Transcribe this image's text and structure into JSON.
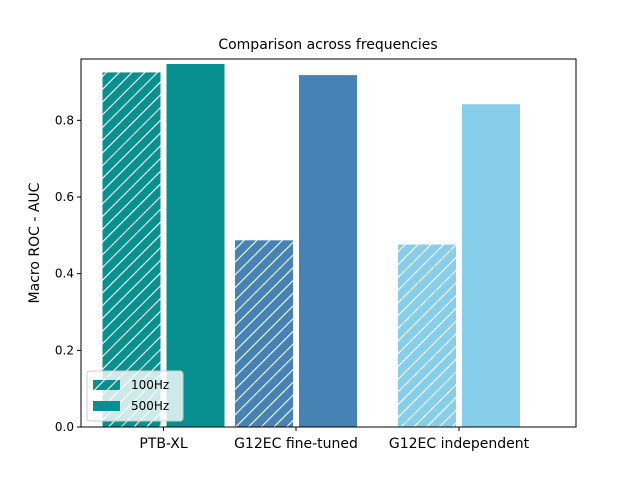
{
  "chart_data": {
    "type": "bar",
    "title": "Comparison across frequencies",
    "xlabel": "",
    "ylabel": "Macro ROC - AUC",
    "categories": [
      "PTB-XL",
      "G12EC fine-tuned",
      "G12EC independent"
    ],
    "series": [
      {
        "name": "100Hz",
        "values": [
          0.925,
          0.487,
          0.476
        ],
        "hatched": true
      },
      {
        "name": "500Hz",
        "values": [
          0.947,
          0.918,
          0.842
        ],
        "hatched": false
      }
    ],
    "category_colors": [
      "#088f8f",
      "#4682b4",
      "#87ceeb"
    ],
    "ylim": [
      0,
      0.96
    ],
    "yticks": [
      0.0,
      0.2,
      0.4,
      0.6,
      0.8
    ],
    "grid": false,
    "legend_position": "lower-left"
  }
}
